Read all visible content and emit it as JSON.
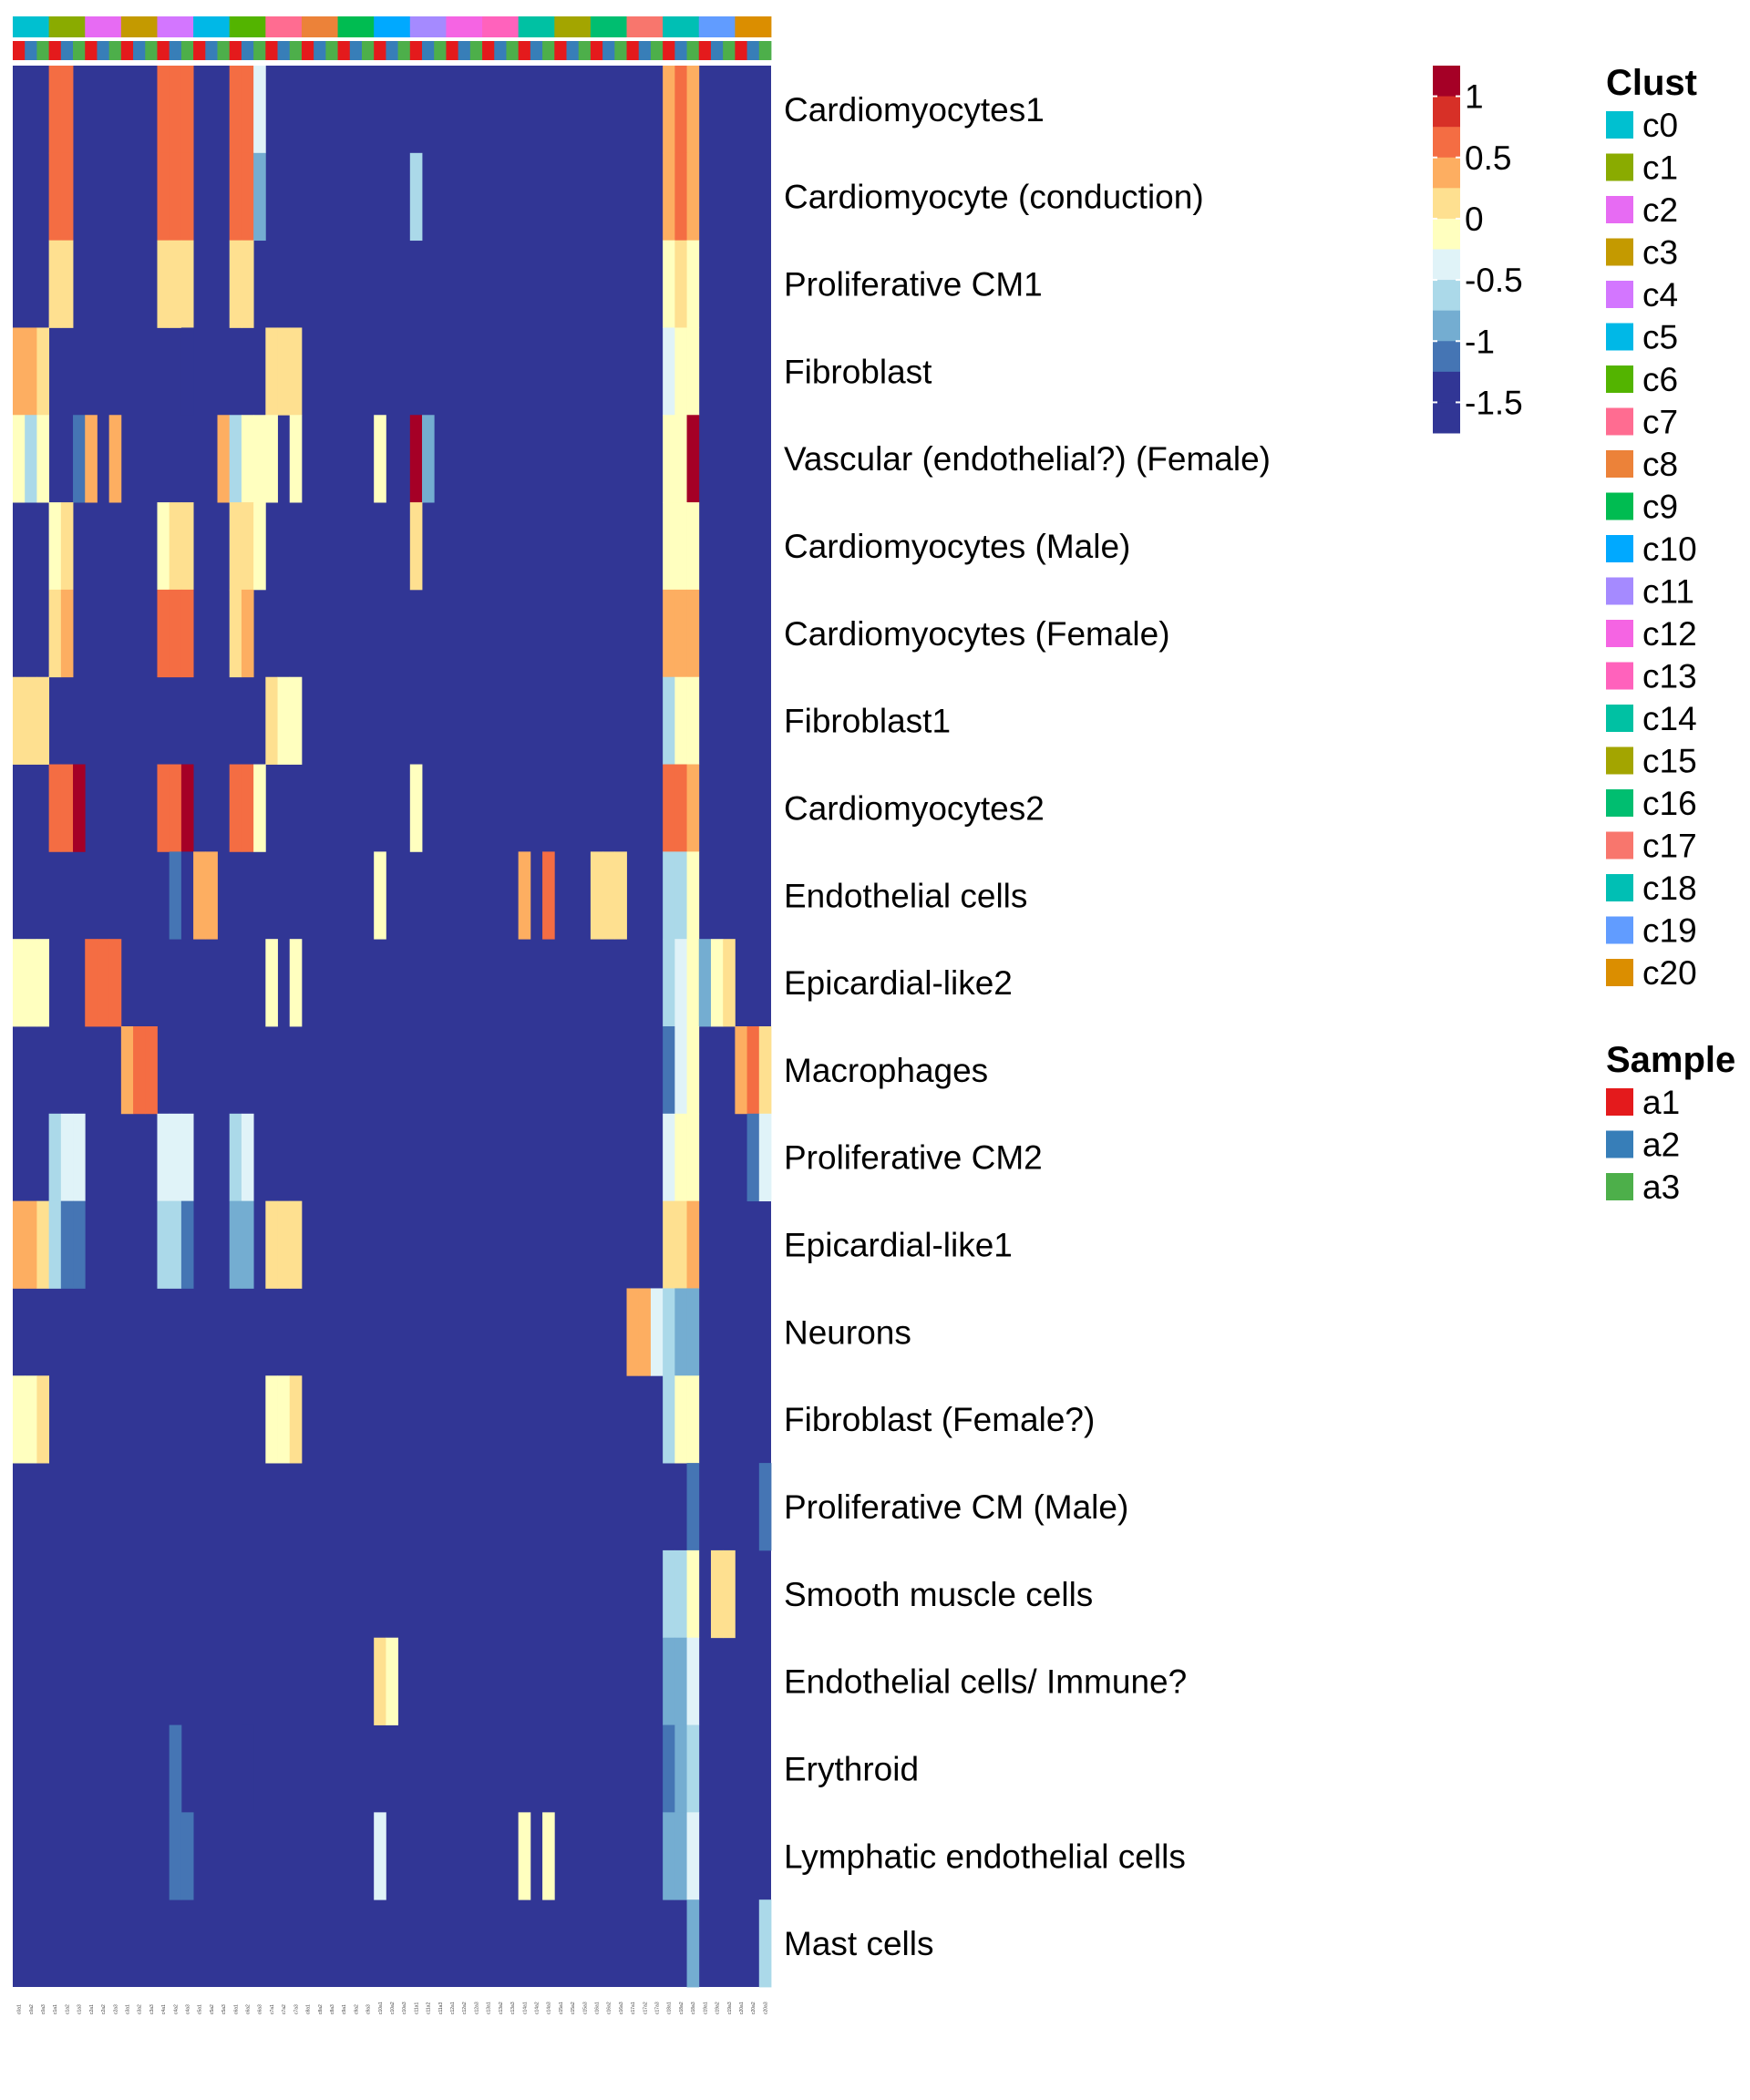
{
  "chart_data": {
    "type": "heatmap",
    "title": "",
    "rows": [
      "Cardiomyocytes1",
      "Cardiomyocyte (conduction)",
      "Proliferative CM1",
      "Fibroblast",
      "Vascular (endothelial?) (Female)",
      "Cardiomyocytes (Male)",
      "Cardiomyocytes (Female)",
      "Fibroblast1",
      "Cardiomyocytes2",
      "Endothelial cells",
      "Epicardial-like2",
      "Macrophages",
      "Proliferative CM2",
      "Epicardial-like1",
      "Neurons",
      "Fibroblast (Female?)",
      "Proliferative CM (Male)",
      "Smooth muscle cells",
      "Endothelial cells/ Immune?",
      "Erythroid",
      "Lymphatic endothelial cells",
      "Mast cells"
    ],
    "columns": [
      "c0a1",
      "c0a2",
      "c0a3",
      "c1a1",
      "c1a2",
      "c1a3",
      "c2a1",
      "c2a2",
      "c2a3",
      "c3a1",
      "c3a2",
      "c3a3",
      "c4a1",
      "c4a2",
      "c4a3",
      "c5a1",
      "c5a2",
      "c5a3",
      "c6a1",
      "c6a2",
      "c6a3",
      "c7a1",
      "c7a2",
      "c7a3",
      "c8a1",
      "c8a2",
      "c8a3",
      "c9a1",
      "c9a2",
      "c9a3",
      "c10a1",
      "c10a2",
      "c10a3",
      "c11a1",
      "c11a2",
      "c11a3",
      "c12a1",
      "c12a2",
      "c12a3",
      "c13a1",
      "c13a2",
      "c13a3",
      "c14a1",
      "c14a2",
      "c14a3",
      "c15a1",
      "c15a2",
      "c15a3",
      "c16a1",
      "c16a2",
      "c16a3",
      "c17a1",
      "c17a2",
      "c17a3",
      "c18a1",
      "c18a2",
      "c18a3",
      "c19a1",
      "c19a2",
      "c19a3",
      "c20a1",
      "c20a2",
      "c20a3"
    ],
    "column_clusters": [
      "c0",
      "c0",
      "c0",
      "c1",
      "c1",
      "c1",
      "c2",
      "c2",
      "c2",
      "c3",
      "c3",
      "c3",
      "c4",
      "c4",
      "c4",
      "c5",
      "c5",
      "c5",
      "c6",
      "c6",
      "c6",
      "c7",
      "c7",
      "c7",
      "c8",
      "c8",
      "c8",
      "c9",
      "c9",
      "c9",
      "c10",
      "c10",
      "c10",
      "c11",
      "c11",
      "c11",
      "c12",
      "c12",
      "c12",
      "c13",
      "c13",
      "c13",
      "c14",
      "c14",
      "c14",
      "c15",
      "c15",
      "c15",
      "c16",
      "c16",
      "c16",
      "c17",
      "c17",
      "c17",
      "c18",
      "c18",
      "c18",
      "c19",
      "c19",
      "c19",
      "c20",
      "c20",
      "c20"
    ],
    "column_samples": [
      "a1",
      "a2",
      "a3",
      "a1",
      "a2",
      "a3",
      "a1",
      "a2",
      "a3",
      "a1",
      "a2",
      "a3",
      "a1",
      "a2",
      "a3",
      "a1",
      "a2",
      "a3",
      "a1",
      "a2",
      "a3",
      "a1",
      "a2",
      "a3",
      "a1",
      "a2",
      "a3",
      "a1",
      "a2",
      "a3",
      "a1",
      "a2",
      "a3",
      "a1",
      "a2",
      "a3",
      "a1",
      "a2",
      "a3",
      "a1",
      "a2",
      "a3",
      "a1",
      "a2",
      "a3",
      "a1",
      "a2",
      "a3",
      "a1",
      "a2",
      "a3",
      "a1",
      "a2",
      "a3",
      "a1",
      "a2",
      "a3",
      "a1",
      "a2",
      "a3",
      "a1",
      "a2",
      "a3"
    ],
    "default_value": -1.5,
    "cells": [
      [
        0,
        3,
        0.75
      ],
      [
        0,
        4,
        0.75
      ],
      [
        0,
        12,
        0.75
      ],
      [
        0,
        13,
        0.75
      ],
      [
        0,
        14,
        0.75
      ],
      [
        0,
        18,
        0.75
      ],
      [
        0,
        19,
        0.75
      ],
      [
        0,
        20,
        -0.25
      ],
      [
        0,
        54,
        0.6
      ],
      [
        0,
        55,
        0.75
      ],
      [
        0,
        56,
        0.6
      ],
      [
        1,
        3,
        0.75
      ],
      [
        1,
        4,
        0.75
      ],
      [
        1,
        12,
        0.75
      ],
      [
        1,
        13,
        0.75
      ],
      [
        1,
        14,
        0.75
      ],
      [
        1,
        18,
        0.75
      ],
      [
        1,
        19,
        0.75
      ],
      [
        1,
        20,
        -0.75
      ],
      [
        1,
        33,
        -0.5
      ],
      [
        1,
        54,
        0.6
      ],
      [
        1,
        55,
        0.75
      ],
      [
        1,
        56,
        0.6
      ],
      [
        2,
        3,
        0.4
      ],
      [
        2,
        4,
        0.4
      ],
      [
        2,
        12,
        0.4
      ],
      [
        2,
        13,
        0.4
      ],
      [
        2,
        14,
        0.4
      ],
      [
        2,
        18,
        0.4
      ],
      [
        2,
        19,
        0.4
      ],
      [
        2,
        54,
        0.2
      ],
      [
        2,
        55,
        0.4
      ],
      [
        2,
        56,
        0.2
      ],
      [
        3,
        0,
        0.6
      ],
      [
        3,
        1,
        0.6
      ],
      [
        3,
        2,
        0.4
      ],
      [
        3,
        14,
        -1.25
      ],
      [
        3,
        21,
        0.4
      ],
      [
        3,
        22,
        0.4
      ],
      [
        3,
        23,
        0.4
      ],
      [
        3,
        54,
        -0.25
      ],
      [
        3,
        55,
        0.2
      ],
      [
        3,
        56,
        0.2
      ],
      [
        4,
        0,
        0.1
      ],
      [
        4,
        1,
        -0.5
      ],
      [
        4,
        2,
        0.1
      ],
      [
        4,
        5,
        -1.0
      ],
      [
        4,
        6,
        0.6
      ],
      [
        4,
        8,
        0.6
      ],
      [
        4,
        17,
        0.6
      ],
      [
        4,
        18,
        -0.5
      ],
      [
        4,
        19,
        0.2
      ],
      [
        4,
        20,
        0.1
      ],
      [
        4,
        21,
        0.1
      ],
      [
        4,
        23,
        0.1
      ],
      [
        4,
        30,
        0.1
      ],
      [
        4,
        33,
        1.25
      ],
      [
        4,
        34,
        -0.75
      ],
      [
        4,
        54,
        0.1
      ],
      [
        4,
        55,
        0.2
      ],
      [
        4,
        56,
        1.25
      ],
      [
        5,
        3,
        0.2
      ],
      [
        5,
        4,
        0.4
      ],
      [
        5,
        12,
        0.2
      ],
      [
        5,
        13,
        0.4
      ],
      [
        5,
        14,
        0.4
      ],
      [
        5,
        18,
        0.4
      ],
      [
        5,
        19,
        0.4
      ],
      [
        5,
        20,
        0.1
      ],
      [
        5,
        33,
        0.4
      ],
      [
        5,
        54,
        0.2
      ],
      [
        5,
        55,
        0.2
      ],
      [
        5,
        56,
        0.2
      ],
      [
        6,
        3,
        0.4
      ],
      [
        6,
        4,
        0.6
      ],
      [
        6,
        12,
        0.75
      ],
      [
        6,
        13,
        0.75
      ],
      [
        6,
        14,
        0.75
      ],
      [
        6,
        18,
        0.4
      ],
      [
        6,
        19,
        0.6
      ],
      [
        6,
        54,
        0.6
      ],
      [
        6,
        55,
        0.6
      ],
      [
        6,
        56,
        0.6
      ],
      [
        7,
        0,
        0.4
      ],
      [
        7,
        1,
        0.4
      ],
      [
        7,
        2,
        0.4
      ],
      [
        7,
        21,
        0.4
      ],
      [
        7,
        22,
        0.2
      ],
      [
        7,
        23,
        0.2
      ],
      [
        7,
        54,
        -0.5
      ],
      [
        7,
        55,
        0.1
      ],
      [
        7,
        56,
        0.1
      ],
      [
        8,
        3,
        0.75
      ],
      [
        8,
        4,
        0.75
      ],
      [
        8,
        5,
        1.25
      ],
      [
        8,
        12,
        0.75
      ],
      [
        8,
        13,
        0.75
      ],
      [
        8,
        14,
        1.25
      ],
      [
        8,
        18,
        0.75
      ],
      [
        8,
        19,
        0.75
      ],
      [
        8,
        20,
        0.1
      ],
      [
        8,
        33,
        0.1
      ],
      [
        8,
        54,
        0.75
      ],
      [
        8,
        55,
        0.75
      ],
      [
        8,
        56,
        0.6
      ],
      [
        9,
        13,
        -1.0
      ],
      [
        9,
        14,
        -1.25
      ],
      [
        9,
        15,
        0.6
      ],
      [
        9,
        16,
        0.6
      ],
      [
        9,
        30,
        0.2
      ],
      [
        9,
        42,
        0.6
      ],
      [
        9,
        44,
        0.75
      ],
      [
        9,
        48,
        0.4
      ],
      [
        9,
        49,
        0.4
      ],
      [
        9,
        50,
        0.4
      ],
      [
        9,
        54,
        -0.5
      ],
      [
        9,
        55,
        -0.5
      ],
      [
        9,
        56,
        0.1
      ],
      [
        10,
        0,
        0.1
      ],
      [
        10,
        1,
        0.1
      ],
      [
        10,
        2,
        0.1
      ],
      [
        10,
        6,
        0.75
      ],
      [
        10,
        7,
        0.75
      ],
      [
        10,
        8,
        0.75
      ],
      [
        10,
        21,
        0.1
      ],
      [
        10,
        23,
        0.1
      ],
      [
        10,
        54,
        -0.5
      ],
      [
        10,
        55,
        -0.25
      ],
      [
        10,
        56,
        0.1
      ],
      [
        10,
        57,
        -0.75
      ],
      [
        10,
        58,
        0.2
      ],
      [
        10,
        59,
        0.4
      ],
      [
        11,
        9,
        0.6
      ],
      [
        11,
        10,
        0.75
      ],
      [
        11,
        11,
        0.75
      ],
      [
        11,
        54,
        -1.0
      ],
      [
        11,
        55,
        -0.25
      ],
      [
        11,
        56,
        0.1
      ],
      [
        11,
        60,
        0.6
      ],
      [
        11,
        61,
        0.75
      ],
      [
        11,
        62,
        0.4
      ],
      [
        12,
        3,
        -0.5
      ],
      [
        12,
        4,
        -0.25
      ],
      [
        12,
        5,
        -0.25
      ],
      [
        12,
        12,
        -0.25
      ],
      [
        12,
        13,
        -0.25
      ],
      [
        12,
        14,
        -0.25
      ],
      [
        12,
        18,
        -0.5
      ],
      [
        12,
        19,
        -0.25
      ],
      [
        12,
        54,
        -0.25
      ],
      [
        12,
        55,
        0.1
      ],
      [
        12,
        56,
        0.1
      ],
      [
        12,
        61,
        -1.0
      ],
      [
        12,
        62,
        -0.25
      ],
      [
        13,
        0,
        0.6
      ],
      [
        13,
        1,
        0.6
      ],
      [
        13,
        2,
        0.4
      ],
      [
        13,
        3,
        -0.5
      ],
      [
        13,
        4,
        -1.0
      ],
      [
        13,
        5,
        -1.0
      ],
      [
        13,
        12,
        -0.5
      ],
      [
        13,
        13,
        -0.5
      ],
      [
        13,
        14,
        -1.0
      ],
      [
        13,
        18,
        -0.75
      ],
      [
        13,
        19,
        -0.75
      ],
      [
        13,
        21,
        0.4
      ],
      [
        13,
        22,
        0.4
      ],
      [
        13,
        23,
        0.4
      ],
      [
        13,
        54,
        0.4
      ],
      [
        13,
        55,
        0.4
      ],
      [
        13,
        56,
        0.6
      ],
      [
        14,
        51,
        0.6
      ],
      [
        14,
        52,
        0.6
      ],
      [
        14,
        53,
        -0.25
      ],
      [
        14,
        54,
        -0.5
      ],
      [
        14,
        55,
        -0.75
      ],
      [
        14,
        56,
        -0.75
      ],
      [
        15,
        0,
        0.2
      ],
      [
        15,
        1,
        0.2
      ],
      [
        15,
        2,
        0.4
      ],
      [
        15,
        21,
        0.2
      ],
      [
        15,
        22,
        0.1
      ],
      [
        15,
        23,
        0.4
      ],
      [
        15,
        54,
        -0.5
      ],
      [
        15,
        55,
        0.2
      ],
      [
        15,
        56,
        0.2
      ],
      [
        16,
        56,
        -1.0
      ],
      [
        16,
        62,
        -1.0
      ],
      [
        17,
        54,
        -0.5
      ],
      [
        17,
        55,
        -0.5
      ],
      [
        17,
        56,
        0.2
      ],
      [
        17,
        58,
        0.4
      ],
      [
        17,
        59,
        0.4
      ],
      [
        18,
        30,
        0.4
      ],
      [
        18,
        31,
        0.2
      ],
      [
        18,
        54,
        -0.75
      ],
      [
        18,
        55,
        -0.75
      ],
      [
        18,
        56,
        -0.25
      ],
      [
        19,
        13,
        -1.0
      ],
      [
        19,
        19,
        -1.25
      ],
      [
        19,
        54,
        -1.0
      ],
      [
        19,
        55,
        -0.75
      ],
      [
        19,
        56,
        -0.5
      ],
      [
        20,
        13,
        -1.0
      ],
      [
        20,
        14,
        -1.0
      ],
      [
        20,
        30,
        -0.25
      ],
      [
        20,
        42,
        0.2
      ],
      [
        20,
        44,
        0.2
      ],
      [
        20,
        54,
        -0.75
      ],
      [
        20,
        55,
        -0.75
      ],
      [
        20,
        56,
        -0.25
      ],
      [
        21,
        56,
        -0.75
      ],
      [
        21,
        62,
        -0.5
      ]
    ],
    "color_scale": {
      "breaks": [
        1.25,
        1.0,
        0.75,
        0.5,
        0.25,
        0.0,
        -0.25,
        -0.5,
        -0.75,
        -1.0,
        -1.25,
        -1.5
      ],
      "colors": [
        "#a50026",
        "#d73027",
        "#f46d43",
        "#fdae61",
        "#fee090",
        "#ffffbf",
        "#e0f3f8",
        "#abd9e9",
        "#74add1",
        "#4575b4",
        "#313695",
        "#313695"
      ],
      "tick_labels": [
        "1",
        "0.5",
        "0",
        "-0.5",
        "-1",
        "-1.5"
      ]
    },
    "legends": {
      "clust": {
        "title": "Clust",
        "items": [
          {
            "label": "c0",
            "color": "#00c0d0"
          },
          {
            "label": "c1",
            "color": "#8aab00"
          },
          {
            "label": "c2",
            "color": "#e76bf3"
          },
          {
            "label": "c3",
            "color": "#c49a00"
          },
          {
            "label": "c4",
            "color": "#d376ff"
          },
          {
            "label": "c5",
            "color": "#00b8e7"
          },
          {
            "label": "c6",
            "color": "#53b400"
          },
          {
            "label": "c7",
            "color": "#ff6c91"
          },
          {
            "label": "c8",
            "color": "#ec8239"
          },
          {
            "label": "c9",
            "color": "#00bc51"
          },
          {
            "label": "c10",
            "color": "#00a9ff"
          },
          {
            "label": "c11",
            "color": "#a58aff"
          },
          {
            "label": "c12",
            "color": "#f564e3"
          },
          {
            "label": "c13",
            "color": "#ff62bc"
          },
          {
            "label": "c14",
            "color": "#00c1a3"
          },
          {
            "label": "c15",
            "color": "#a3a500"
          },
          {
            "label": "c16",
            "color": "#00be70"
          },
          {
            "label": "c17",
            "color": "#f8766d"
          },
          {
            "label": "c18",
            "color": "#00bfb4"
          },
          {
            "label": "c19",
            "color": "#619cff"
          },
          {
            "label": "c20",
            "color": "#db8e00"
          }
        ]
      },
      "sample": {
        "title": "Sample",
        "items": [
          {
            "label": "a1",
            "color": "#e41a1c"
          },
          {
            "label": "a2",
            "color": "#377eb8"
          },
          {
            "label": "a3",
            "color": "#4daf4a"
          }
        ]
      }
    }
  }
}
